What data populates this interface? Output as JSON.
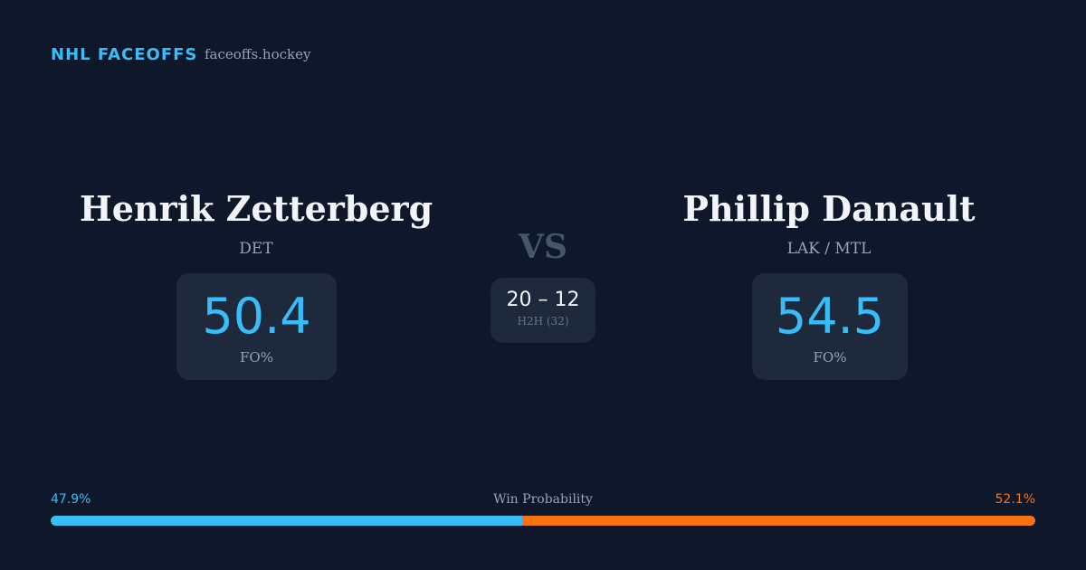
{
  "header": {
    "brand": "NHL FACEOFFS",
    "site": "faceoffs.hockey"
  },
  "players": [
    {
      "name": "Henrik Zetterberg",
      "team": "DET",
      "fo_pct": 50.4,
      "fo_label": "FO%"
    },
    {
      "name": "Phillip Danault",
      "team": "LAK / MTL",
      "fo_pct": 54.5,
      "fo_label": "FO%"
    }
  ],
  "versus": {
    "label": "VS",
    "h2h_score": "20 – 12",
    "h2h_label": "H2H (32)"
  },
  "win_probability": {
    "title": "Win Probability",
    "segments": [
      {
        "value": 47.9,
        "label": "47.9%",
        "color": "#38bdf8"
      },
      {
        "value": 52.1,
        "label": "52.1%",
        "color": "#f97316"
      }
    ]
  }
}
